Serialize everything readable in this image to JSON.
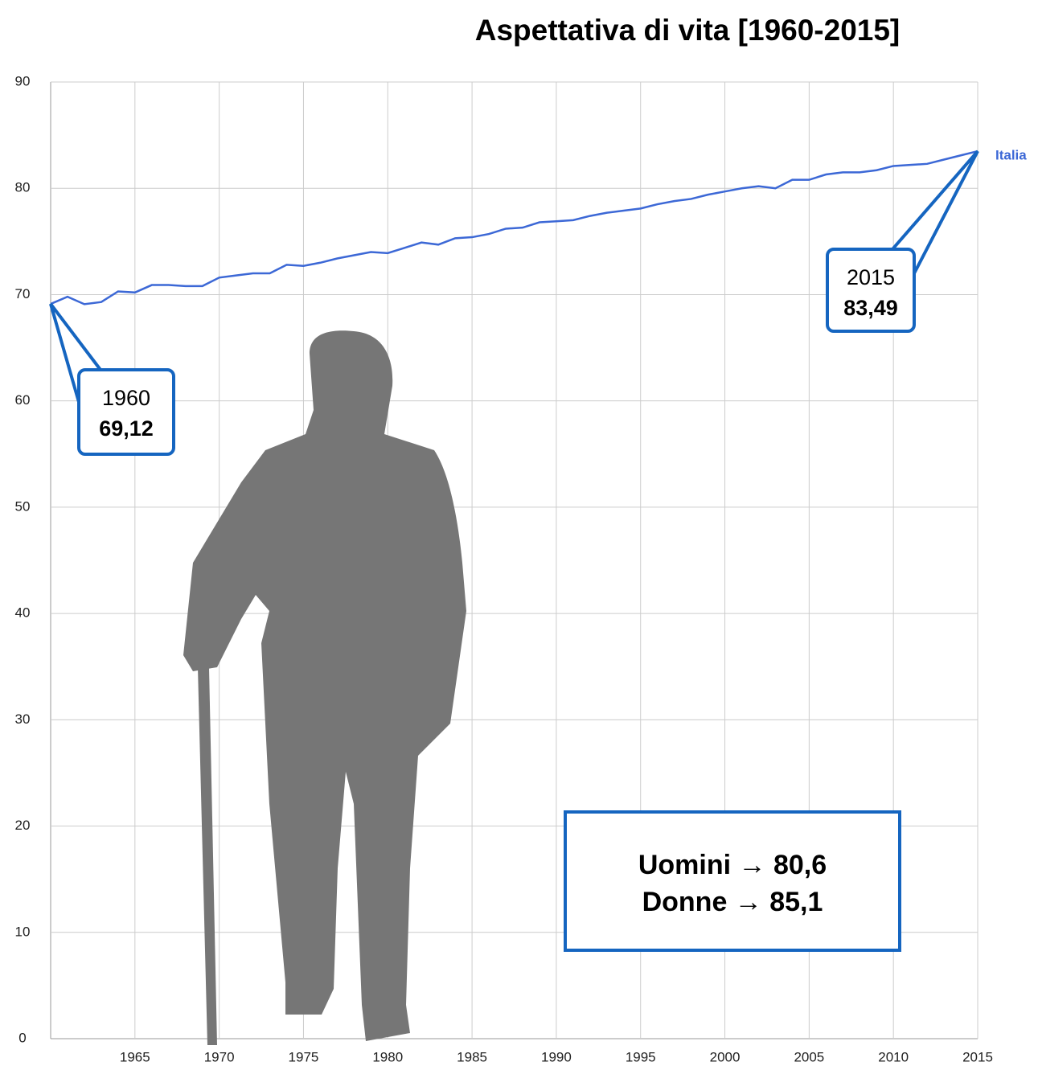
{
  "chart_data": {
    "type": "line",
    "title": "Aspettativa di vita [1960-2015]",
    "x": [
      1960,
      1961,
      1962,
      1963,
      1964,
      1965,
      1966,
      1967,
      1968,
      1969,
      1970,
      1971,
      1972,
      1973,
      1974,
      1975,
      1976,
      1977,
      1978,
      1979,
      1980,
      1981,
      1982,
      1983,
      1984,
      1985,
      1986,
      1987,
      1988,
      1989,
      1990,
      1991,
      1992,
      1993,
      1994,
      1995,
      1996,
      1997,
      1998,
      1999,
      2000,
      2001,
      2002,
      2003,
      2004,
      2005,
      2006,
      2007,
      2008,
      2009,
      2010,
      2011,
      2012,
      2013,
      2014,
      2015
    ],
    "series": [
      {
        "name": "Italia",
        "color": "#3c68d6",
        "values": [
          69.12,
          69.8,
          69.1,
          69.3,
          70.3,
          70.2,
          70.9,
          70.9,
          70.8,
          70.8,
          71.6,
          71.8,
          72.0,
          72.0,
          72.8,
          72.7,
          73.0,
          73.4,
          73.7,
          74.0,
          73.9,
          74.4,
          74.9,
          74.7,
          75.3,
          75.4,
          75.7,
          76.2,
          76.3,
          76.8,
          76.9,
          77.0,
          77.4,
          77.7,
          77.9,
          78.1,
          78.5,
          78.8,
          79.0,
          79.4,
          79.7,
          80.0,
          80.2,
          80.0,
          80.8,
          80.8,
          81.3,
          81.5,
          81.5,
          81.7,
          82.1,
          82.2,
          82.3,
          82.7,
          83.1,
          83.49
        ],
        "value_labels": [
          "69,12",
          null,
          null,
          null,
          null,
          null,
          null,
          null,
          null,
          null,
          null,
          null,
          null,
          null,
          null,
          null,
          null,
          null,
          null,
          null,
          null,
          null,
          null,
          null,
          null,
          null,
          null,
          null,
          null,
          null,
          null,
          null,
          null,
          null,
          null,
          null,
          null,
          null,
          null,
          null,
          null,
          null,
          null,
          null,
          null,
          null,
          null,
          null,
          null,
          null,
          null,
          null,
          null,
          null,
          null,
          "83,49"
        ]
      }
    ],
    "xlim": [
      1960,
      2015
    ],
    "xticks": [
      1965,
      1970,
      1975,
      1980,
      1985,
      1990,
      1995,
      2000,
      2005,
      2010,
      2015
    ],
    "ylim": [
      0,
      90
    ],
    "yticks": [
      0,
      10,
      20,
      30,
      40,
      50,
      60,
      70,
      80,
      90
    ],
    "grid": true,
    "annotations": [
      "Uomini → 80,6",
      "Donne → 85,1"
    ]
  }
}
